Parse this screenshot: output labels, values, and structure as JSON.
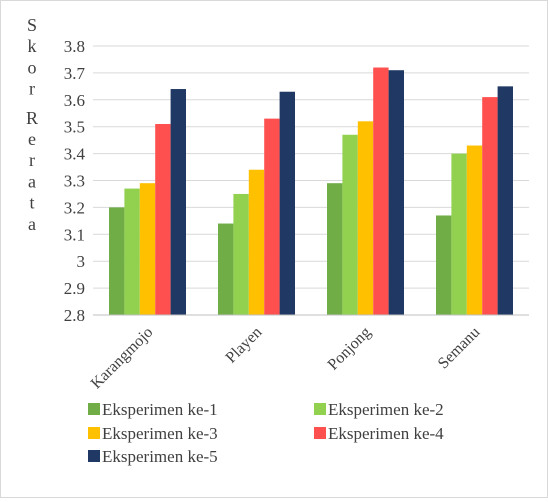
{
  "chart_data": {
    "type": "bar",
    "title": "",
    "xlabel": "",
    "ylabel": "Skor Rerata",
    "ylim": [
      2.8,
      3.8
    ],
    "yticks": [
      "2.8",
      "2.9",
      "3",
      "3.1",
      "3.2",
      "3.3",
      "3.4",
      "3.5",
      "3.6",
      "3.7",
      "3.8"
    ],
    "grid": true,
    "legend_position": "bottom",
    "categories": [
      "Karangmojo",
      "Playen",
      "Ponjong",
      "Semanu"
    ],
    "series": [
      {
        "name": "Eksperimen ke-1",
        "color": "#70ad47",
        "values": [
          3.2,
          3.14,
          3.29,
          3.17
        ]
      },
      {
        "name": "Eksperimen ke-2",
        "color": "#92d050",
        "values": [
          3.27,
          3.25,
          3.47,
          3.4
        ]
      },
      {
        "name": "Eksperimen ke-3",
        "color": "#ffc000",
        "values": [
          3.29,
          3.34,
          3.52,
          3.43
        ]
      },
      {
        "name": "Eksperimen ke-4",
        "color": "#ff5050",
        "values": [
          3.51,
          3.53,
          3.72,
          3.61
        ]
      },
      {
        "name": "Eksperimen ke-5",
        "color": "#203864",
        "values": [
          3.64,
          3.63,
          3.71,
          3.65
        ]
      }
    ]
  }
}
